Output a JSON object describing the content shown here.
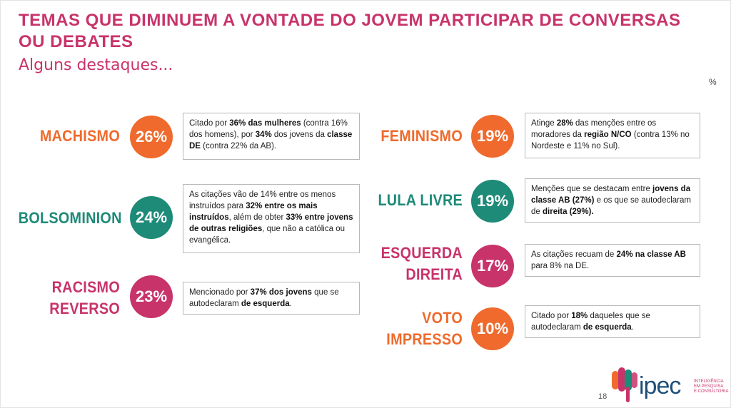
{
  "header": {
    "title": "TEMAS QUE DIMINUEM A VONTADE DO JOVEM PARTICIPAR DE CONVERSAS OU DEBATES",
    "subtitle": "Alguns destaques...",
    "unit": "%"
  },
  "items": [
    {
      "label": "MACHISMO",
      "value": "26%",
      "color": "#ef6a2c",
      "note_parts": [
        {
          "t": "Citado por ",
          "b": false
        },
        {
          "t": "36% das mulheres",
          "b": true
        },
        {
          "t": " (contra 16% dos homens), por ",
          "b": false
        },
        {
          "t": "34%",
          "b": true
        },
        {
          "t": " dos jovens da ",
          "b": false
        },
        {
          "t": "classe DE",
          "b": true
        },
        {
          "t": " (contra 22% da AB).",
          "b": false
        }
      ]
    },
    {
      "label": "BOLSOMINION",
      "value": "24%",
      "color": "#1e8a78",
      "note_parts": [
        {
          "t": "As citações vão de 14% entre os menos instruídos para ",
          "b": false
        },
        {
          "t": "32% entre os mais instruídos",
          "b": true
        },
        {
          "t": ", além de obter ",
          "b": false
        },
        {
          "t": "33% entre jovens de outras religiões",
          "b": true
        },
        {
          "t": ", que não a católica ou evangélica.",
          "b": false
        }
      ]
    },
    {
      "label_lines": [
        "RACISMO",
        "REVERSO"
      ],
      "value": "23%",
      "color": "#c8336a",
      "note_parts": [
        {
          "t": "Mencionado por ",
          "b": false
        },
        {
          "t": "37% dos jovens",
          "b": true
        },
        {
          "t": " que se autodeclaram ",
          "b": false
        },
        {
          "t": "de esquerda",
          "b": true
        },
        {
          "t": ".",
          "b": false
        }
      ]
    },
    {
      "label": "FEMINISMO",
      "value": "19%",
      "color": "#ef6a2c",
      "note_parts": [
        {
          "t": "Atinge ",
          "b": false
        },
        {
          "t": "28%",
          "b": true
        },
        {
          "t": " das menções entre os moradores da ",
          "b": false
        },
        {
          "t": "região N/CO",
          "b": true
        },
        {
          "t": " (contra 13% no Nordeste e 11% no Sul).",
          "b": false
        }
      ]
    },
    {
      "label": "LULA LIVRE",
      "value": "19%",
      "color": "#1e8a78",
      "note_parts": [
        {
          "t": "Menções que se destacam entre ",
          "b": false
        },
        {
          "t": "jovens da classe AB (27%)",
          "b": true
        },
        {
          "t": " e os que se autodeclaram de ",
          "b": false
        },
        {
          "t": "direita (29%).",
          "b": true
        }
      ]
    },
    {
      "label_lines": [
        "ESQUERDA",
        "DIREITA"
      ],
      "value": "17%",
      "color": "#c8336a",
      "note_parts": [
        {
          "t": "As citações recuam de ",
          "b": false
        },
        {
          "t": "24% na classe AB",
          "b": true
        },
        {
          "t": " para 8% na DE.",
          "b": false
        }
      ]
    },
    {
      "label_lines": [
        "VOTO",
        "IMPRESSO"
      ],
      "value": "10%",
      "color": "#ef6a2c",
      "note_parts": [
        {
          "t": "Citado por ",
          "b": false
        },
        {
          "t": "18%",
          "b": true
        },
        {
          "t": " daqueles que se autodeclaram ",
          "b": false
        },
        {
          "t": "de esquerda",
          "b": true
        },
        {
          "t": ".",
          "b": false
        }
      ]
    }
  ],
  "footer": {
    "page_number": "18",
    "logo_text": "ipec",
    "logo_tagline_lines": [
      "INTELIGÊNCIA",
      "EM PESQUISA",
      "E CONSULTORIA"
    ],
    "logo_colors": [
      "#ef6a2c",
      "#c8336a",
      "#1e8a78"
    ]
  }
}
